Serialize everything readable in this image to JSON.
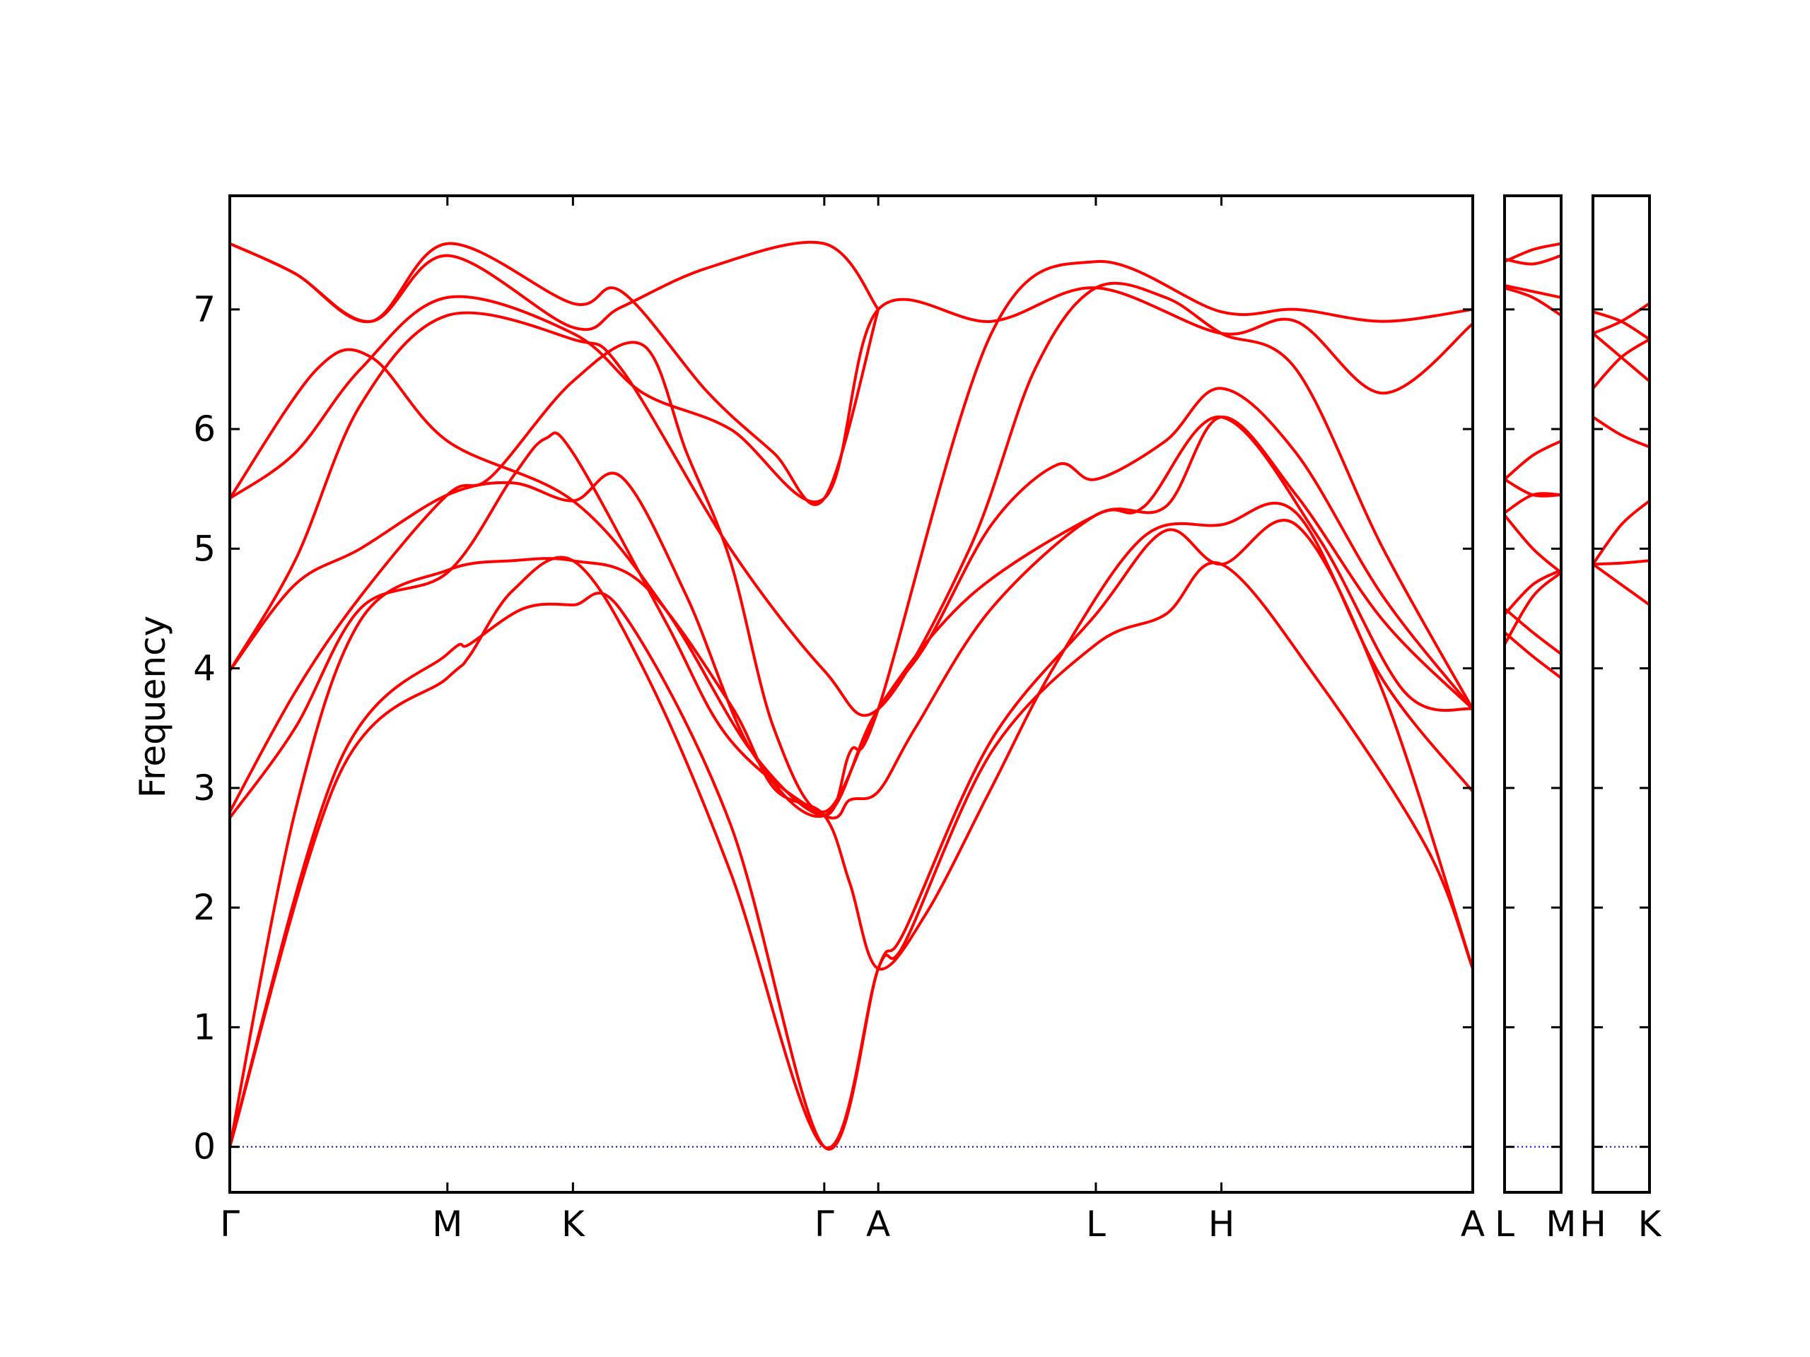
{
  "chart_data": {
    "type": "line",
    "ylabel": "Frequency",
    "ylim": [
      -0.38,
      7.95
    ],
    "yticks": [
      0,
      1,
      2,
      3,
      4,
      5,
      6,
      7
    ],
    "grid": false,
    "colors": {
      "bands": "#ff0000",
      "zero_line": "#0000ff"
    },
    "panels": [
      {
        "kpoints": [
          {
            "label": "Γ",
            "x": 0
          },
          {
            "label": "M",
            "x": 1
          },
          {
            "label": "K",
            "x": 1.577
          },
          {
            "label": "Γ",
            "x": 2.732
          },
          {
            "label": "A",
            "x": 2.98
          },
          {
            "label": "L",
            "x": 3.98
          },
          {
            "label": "H",
            "x": 4.557
          },
          {
            "label": "A",
            "x": 5.712
          }
        ],
        "bands": [
          [
            [
              0,
              0
            ],
            [
              0.5,
              3.1
            ],
            [
              1,
              3.92
            ],
            [
              1.1,
              4.1
            ],
            [
              1.3,
              4.65
            ],
            [
              1.577,
              4.9
            ],
            [
              1.9,
              4.0
            ],
            [
              2.3,
              2.3
            ],
            [
              2.732,
              0
            ],
            [
              2.98,
              1.49
            ],
            [
              3.1,
              1.7
            ],
            [
              3.5,
              3.3
            ],
            [
              3.98,
              4.2
            ],
            [
              4.3,
              4.45
            ],
            [
              4.557,
              4.87
            ],
            [
              5.0,
              3.9
            ],
            [
              5.5,
              2.5
            ],
            [
              5.712,
              1.49
            ]
          ],
          [
            [
              0,
              0
            ],
            [
              0.5,
              3.2
            ],
            [
              1,
              4.12
            ],
            [
              1.1,
              4.2
            ],
            [
              1.35,
              4.5
            ],
            [
              1.577,
              4.53
            ],
            [
              1.8,
              4.48
            ],
            [
              2.3,
              2.7
            ],
            [
              2.732,
              0
            ],
            [
              2.98,
              1.49
            ],
            [
              3.1,
              1.8
            ],
            [
              3.5,
              3.4
            ],
            [
              3.98,
              4.45
            ],
            [
              4.3,
              5.15
            ],
            [
              4.557,
              4.87
            ],
            [
              4.9,
              5.2
            ],
            [
              5.3,
              3.8
            ],
            [
              5.712,
              1.49
            ]
          ],
          [
            [
              0,
              0
            ],
            [
              0.3,
              2.8
            ],
            [
              0.6,
              4.4
            ],
            [
              1,
              4.82
            ],
            [
              1.3,
              4.9
            ],
            [
              1.577,
              4.9
            ],
            [
              1.9,
              4.7
            ],
            [
              2.3,
              3.7
            ],
            [
              2.5,
              3.0
            ],
            [
              2.732,
              2.77
            ],
            [
              2.85,
              2.2
            ],
            [
              2.98,
              1.49
            ],
            [
              3.2,
              1.95
            ],
            [
              3.5,
              3.0
            ],
            [
              3.8,
              4.05
            ],
            [
              4.2,
              5.1
            ],
            [
              4.557,
              5.2
            ],
            [
              4.9,
              5.3
            ],
            [
              5.3,
              3.9
            ],
            [
              5.712,
              2.97
            ]
          ],
          [
            [
              0,
              2.75
            ],
            [
              0.3,
              3.5
            ],
            [
              0.6,
              4.5
            ],
            [
              1,
              4.8
            ],
            [
              1.3,
              5.6
            ],
            [
              1.45,
              5.92
            ],
            [
              1.577,
              5.8
            ],
            [
              2.0,
              4.4
            ],
            [
              2.3,
              3.4
            ],
            [
              2.732,
              2.77
            ],
            [
              2.85,
              2.9
            ],
            [
              2.98,
              2.97
            ],
            [
              3.15,
              3.5
            ],
            [
              3.5,
              4.5
            ],
            [
              3.98,
              5.28
            ],
            [
              4.3,
              5.35
            ],
            [
              4.557,
              6.1
            ],
            [
              4.9,
              5.45
            ],
            [
              5.3,
              4.4
            ],
            [
              5.712,
              3.66
            ]
          ],
          [
            [
              0,
              2.8
            ],
            [
              0.3,
              3.8
            ],
            [
              0.6,
              4.6
            ],
            [
              1,
              5.45
            ],
            [
              1.2,
              5.6
            ],
            [
              1.577,
              6.4
            ],
            [
              1.9,
              6.7
            ],
            [
              2.1,
              5.8
            ],
            [
              2.3,
              4.9
            ],
            [
              2.5,
              3.5
            ],
            [
              2.732,
              2.8
            ],
            [
              2.98,
              3.66
            ],
            [
              3.2,
              4.2
            ],
            [
              3.5,
              5.2
            ],
            [
              3.8,
              5.7
            ],
            [
              3.98,
              5.58
            ],
            [
              4.3,
              5.9
            ],
            [
              4.557,
              6.34
            ],
            [
              4.9,
              5.8
            ],
            [
              5.3,
              4.6
            ],
            [
              5.712,
              3.66
            ]
          ],
          [
            [
              0,
              3.98
            ],
            [
              0.3,
              4.7
            ],
            [
              0.6,
              5.0
            ],
            [
              1,
              5.45
            ],
            [
              1.3,
              5.55
            ],
            [
              1.577,
              5.4
            ],
            [
              1.8,
              5.6
            ],
            [
              2.1,
              4.6
            ],
            [
              2.4,
              3.3
            ],
            [
              2.732,
              2.77
            ],
            [
              2.98,
              3.66
            ],
            [
              3.4,
              4.6
            ],
            [
              3.98,
              5.28
            ],
            [
              4.2,
              5.35
            ],
            [
              4.557,
              6.1
            ],
            [
              5.0,
              5.1
            ],
            [
              5.4,
              3.8
            ],
            [
              5.712,
              3.66
            ]
          ],
          [
            [
              0,
              3.98
            ],
            [
              0.3,
              4.9
            ],
            [
              0.6,
              6.2
            ],
            [
              1,
              6.95
            ],
            [
              1.577,
              6.75
            ],
            [
              1.8,
              6.5
            ],
            [
              2.3,
              5.0
            ],
            [
              2.732,
              3.98
            ],
            [
              2.98,
              3.66
            ],
            [
              3.4,
              5.0
            ],
            [
              3.7,
              6.5
            ],
            [
              3.98,
              7.18
            ],
            [
              4.3,
              7.1
            ],
            [
              4.557,
              6.8
            ],
            [
              4.9,
              6.5
            ],
            [
              5.3,
              5.0
            ],
            [
              5.712,
              3.66
            ]
          ],
          [
            [
              0,
              5.42
            ],
            [
              0.3,
              5.8
            ],
            [
              0.6,
              6.5
            ],
            [
              1,
              7.1
            ],
            [
              1.577,
              6.8
            ],
            [
              1.9,
              6.3
            ],
            [
              2.3,
              6.0
            ],
            [
              2.732,
              5.42
            ],
            [
              2.98,
              7.0
            ],
            [
              3.5,
              6.9
            ],
            [
              3.98,
              7.18
            ],
            [
              4.557,
              6.8
            ],
            [
              4.9,
              6.9
            ],
            [
              5.3,
              6.3
            ],
            [
              5.712,
              6.88
            ]
          ],
          [
            [
              0,
              5.42
            ],
            [
              0.4,
              6.5
            ],
            [
              0.65,
              6.6
            ],
            [
              1,
              5.9
            ],
            [
              1.577,
              5.4
            ],
            [
              2.0,
              4.5
            ],
            [
              2.4,
              3.3
            ],
            [
              2.732,
              2.77
            ],
            [
              2.85,
              3.3
            ],
            [
              2.98,
              3.66
            ],
            [
              3.5,
              6.8
            ],
            [
              3.98,
              7.4
            ],
            [
              4.557,
              6.98
            ],
            [
              4.9,
              7.0
            ],
            [
              5.3,
              6.9
            ],
            [
              5.712,
              7.0
            ]
          ],
          [
            [
              0,
              7.55
            ],
            [
              0.3,
              7.3
            ],
            [
              0.65,
              6.9
            ],
            [
              1,
              7.55
            ],
            [
              1.577,
              7.05
            ],
            [
              1.8,
              7.15
            ],
            [
              2.2,
              6.3
            ],
            [
              2.5,
              5.8
            ],
            [
              2.732,
              5.42
            ],
            [
              2.98,
              7.0
            ]
          ],
          [
            [
              0,
              7.55
            ],
            [
              0.3,
              7.3
            ],
            [
              0.65,
              6.9
            ],
            [
              1,
              7.45
            ],
            [
              1.577,
              6.85
            ],
            [
              1.8,
              7.02
            ],
            [
              2.2,
              7.35
            ],
            [
              2.732,
              7.55
            ],
            [
              2.98,
              7.0
            ]
          ]
        ]
      },
      {
        "kpoints": [
          {
            "label": "L",
            "x": 0
          },
          {
            "label": "M",
            "x": 1
          }
        ],
        "bands": [
          [
            [
              0,
              4.2
            ],
            [
              0.5,
              4.6
            ],
            [
              1,
              4.8
            ]
          ],
          [
            [
              0,
              4.3
            ],
            [
              0.5,
              4.1
            ],
            [
              1,
              3.92
            ]
          ],
          [
            [
              0,
              4.5
            ],
            [
              0.5,
              4.3
            ],
            [
              1,
              4.12
            ]
          ],
          [
            [
              0,
              4.45
            ],
            [
              0.5,
              4.7
            ],
            [
              1,
              4.82
            ]
          ],
          [
            [
              0,
              5.28
            ],
            [
              0.5,
              5.0
            ],
            [
              1,
              4.8
            ]
          ],
          [
            [
              0,
              5.3
            ],
            [
              0.5,
              5.45
            ],
            [
              1,
              5.45
            ]
          ],
          [
            [
              0,
              5.58
            ],
            [
              0.5,
              5.78
            ],
            [
              1,
              5.9
            ]
          ],
          [
            [
              0,
              5.58
            ],
            [
              0.5,
              5.45
            ],
            [
              1,
              5.45
            ]
          ],
          [
            [
              0,
              7.18
            ],
            [
              0.5,
              7.1
            ],
            [
              1,
              6.95
            ]
          ],
          [
            [
              0,
              7.2
            ],
            [
              0.5,
              7.15
            ],
            [
              1,
              7.1
            ]
          ],
          [
            [
              0,
              7.4
            ],
            [
              0.5,
              7.5
            ],
            [
              1,
              7.55
            ]
          ],
          [
            [
              0,
              7.42
            ],
            [
              0.5,
              7.38
            ],
            [
              1,
              7.45
            ]
          ]
        ]
      },
      {
        "kpoints": [
          {
            "label": "H",
            "x": 0
          },
          {
            "label": "K",
            "x": 1
          }
        ],
        "bands": [
          [
            [
              0,
              4.87
            ],
            [
              0.5,
              4.88
            ],
            [
              1,
              4.9
            ]
          ],
          [
            [
              0,
              4.87
            ],
            [
              0.5,
              4.7
            ],
            [
              1,
              4.53
            ]
          ],
          [
            [
              0,
              4.87
            ],
            [
              0.5,
              5.2
            ],
            [
              1,
              5.4
            ]
          ],
          [
            [
              0,
              6.1
            ],
            [
              0.5,
              5.95
            ],
            [
              1,
              5.85
            ]
          ],
          [
            [
              0,
              6.34
            ],
            [
              0.5,
              6.6
            ],
            [
              1,
              6.75
            ]
          ],
          [
            [
              0,
              6.8
            ],
            [
              0.5,
              6.6
            ],
            [
              1,
              6.4
            ]
          ],
          [
            [
              0,
              6.8
            ],
            [
              0.5,
              6.9
            ],
            [
              1,
              7.05
            ]
          ],
          [
            [
              0,
              6.98
            ],
            [
              0.5,
              6.9
            ],
            [
              1,
              6.75
            ]
          ]
        ]
      }
    ]
  }
}
